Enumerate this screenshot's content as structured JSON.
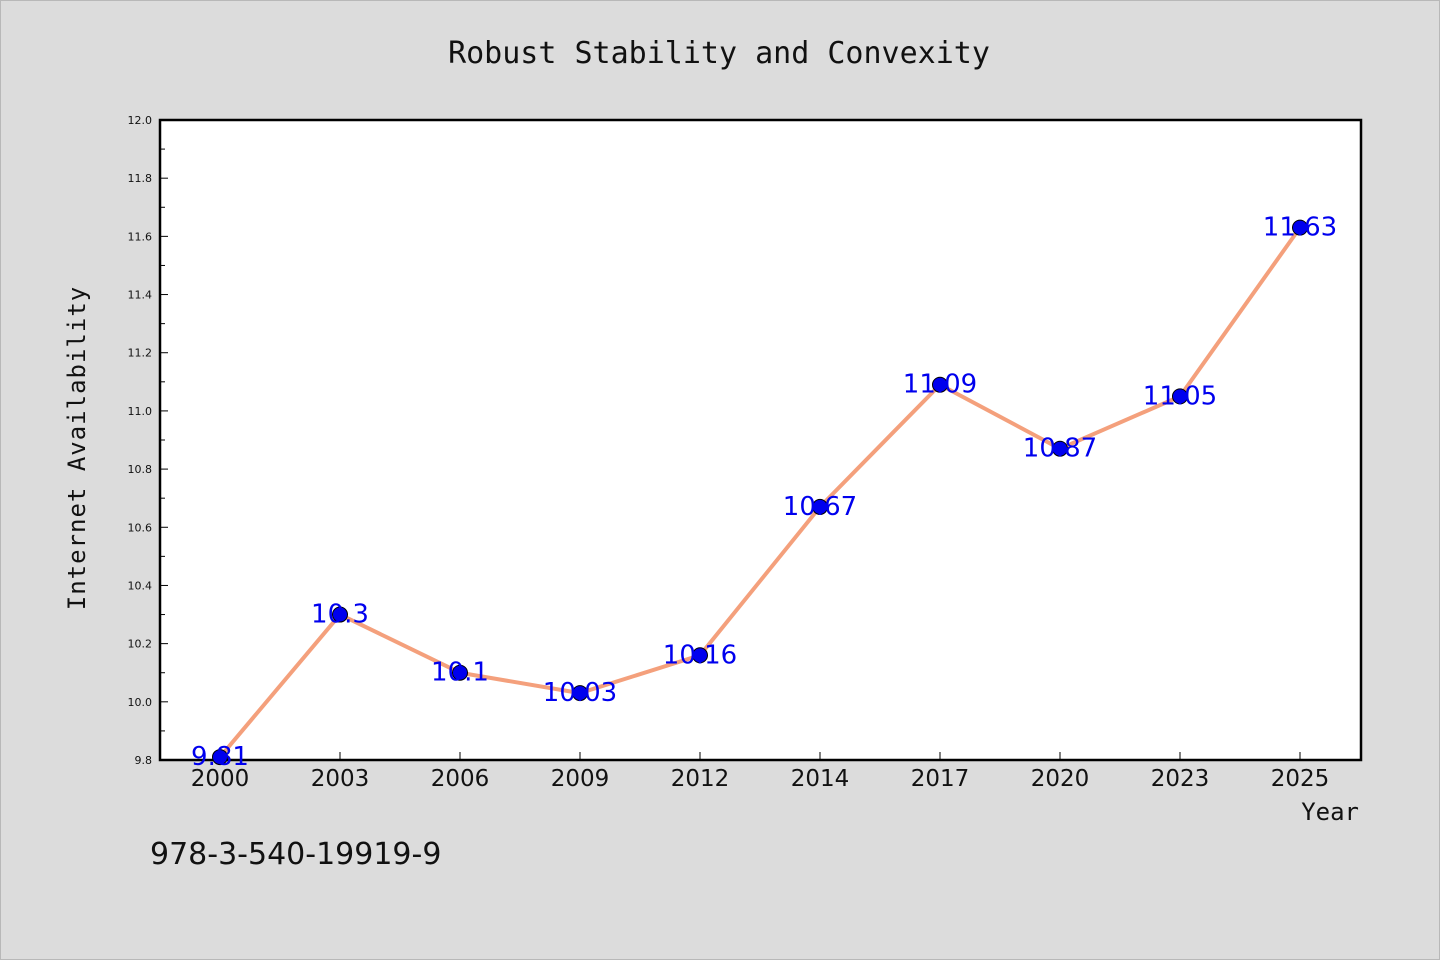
{
  "chart_data": {
    "type": "line",
    "title": "Robust Stability and Convexity",
    "xlabel": "Year",
    "ylabel": "Internet Availability",
    "categories": [
      "2000",
      "2003",
      "2006",
      "2009",
      "2012",
      "2014",
      "2017",
      "2020",
      "2023",
      "2025"
    ],
    "values": [
      9.81,
      10.3,
      10.1,
      10.03,
      10.16,
      10.67,
      11.09,
      10.87,
      11.05,
      11.63
    ],
    "data_labels": [
      "9.81",
      "10.3",
      "10.1",
      "10.03",
      "10.16",
      "10.67",
      "11.09",
      "10.87",
      "11.05",
      "11.63"
    ],
    "ylim": [
      9.8,
      12.0
    ],
    "yticks": [
      "9.8",
      "10.0",
      "10.2",
      "10.4",
      "10.6",
      "10.8",
      "11.0",
      "11.2",
      "11.4",
      "11.6",
      "11.8",
      "12.0"
    ],
    "grid": false,
    "legend": "none",
    "line_color": "#f4a07c",
    "marker_color": "#0000ee",
    "label_color": "#0000ee"
  },
  "footer": {
    "isbn": "978-3-540-19919-9"
  }
}
